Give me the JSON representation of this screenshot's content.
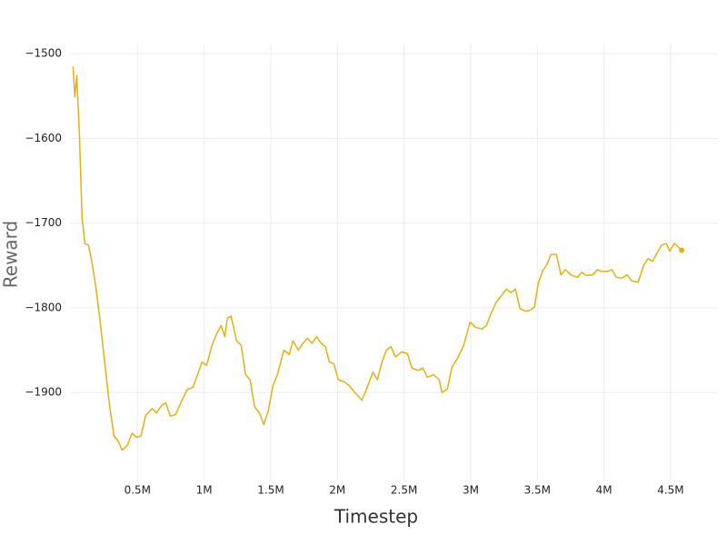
{
  "chart_data": {
    "type": "line",
    "x_label": "Timestep",
    "y_label": "Reward",
    "xlim": [
      0,
      4855000
    ],
    "ylim": [
      -2005,
      -1488
    ],
    "xticks": [
      {
        "value": 500000,
        "label": "0.5M"
      },
      {
        "value": 1000000,
        "label": "1M"
      },
      {
        "value": 1500000,
        "label": "1.5M"
      },
      {
        "value": 2000000,
        "label": "2M"
      },
      {
        "value": 2500000,
        "label": "2.5M"
      },
      {
        "value": 3000000,
        "label": "3M"
      },
      {
        "value": 3500000,
        "label": "3.5M"
      },
      {
        "value": 4000000,
        "label": "4M"
      },
      {
        "value": 4500000,
        "label": "4.5M"
      }
    ],
    "yticks": [
      {
        "value": -1500,
        "label": "−1500"
      },
      {
        "value": -1600,
        "label": "−1600"
      },
      {
        "value": -1700,
        "label": "−1700"
      },
      {
        "value": -1800,
        "label": "−1800"
      },
      {
        "value": -1900,
        "label": "−1900"
      }
    ],
    "grid": true,
    "end_marker": true,
    "series": [
      {
        "color": "#e6b00e",
        "x": [
          16000,
          30000,
          44000,
          64000,
          84000,
          105000,
          132000,
          160000,
          187000,
          220000,
          255000,
          289000,
          323000,
          357000,
          384000,
          425000,
          459000,
          493000,
          527000,
          561000,
          609000,
          643000,
          677000,
          712000,
          746000,
          786000,
          834000,
          875000,
          916000,
          957000,
          984000,
          1018000,
          1059000,
          1093000,
          1127000,
          1155000,
          1175000,
          1202000,
          1243000,
          1277000,
          1311000,
          1345000,
          1379000,
          1414000,
          1448000,
          1482000,
          1516000,
          1550000,
          1598000,
          1639000,
          1666000,
          1707000,
          1741000,
          1775000,
          1809000,
          1843000,
          1877000,
          1911000,
          1939000,
          1973000,
          2007000,
          2048000,
          2089000,
          2130000,
          2184000,
          2218000,
          2266000,
          2300000,
          2334000,
          2368000,
          2402000,
          2436000,
          2484000,
          2525000,
          2559000,
          2607000,
          2641000,
          2675000,
          2722000,
          2764000,
          2784000,
          2825000,
          2859000,
          2900000,
          2948000,
          2995000,
          3036000,
          3084000,
          3118000,
          3152000,
          3193000,
          3234000,
          3268000,
          3302000,
          3336000,
          3370000,
          3411000,
          3445000,
          3479000,
          3507000,
          3541000,
          3575000,
          3602000,
          3643000,
          3677000,
          3711000,
          3752000,
          3800000,
          3834000,
          3868000,
          3916000,
          3950000,
          3984000,
          4025000,
          4059000,
          4093000,
          4134000,
          4174000,
          4208000,
          4256000,
          4297000,
          4331000,
          4365000,
          4399000,
          4433000,
          4467000,
          4494000,
          4528000,
          4556000,
          4583000
        ],
        "values": [
          -1515,
          -1551,
          -1526,
          -1595,
          -1694,
          -1724,
          -1726,
          -1748,
          -1775,
          -1817,
          -1866,
          -1914,
          -1951,
          -1958,
          -1968,
          -1962,
          -1948,
          -1953,
          -1951,
          -1927,
          -1919,
          -1924,
          -1916,
          -1912,
          -1928,
          -1926,
          -1909,
          -1896,
          -1894,
          -1876,
          -1864,
          -1868,
          -1844,
          -1831,
          -1821,
          -1834,
          -1812,
          -1810,
          -1839,
          -1844,
          -1879,
          -1885,
          -1917,
          -1924,
          -1938,
          -1921,
          -1892,
          -1879,
          -1850,
          -1855,
          -1839,
          -1850,
          -1842,
          -1836,
          -1842,
          -1834,
          -1842,
          -1846,
          -1864,
          -1866,
          -1885,
          -1887,
          -1892,
          -1900,
          -1909,
          -1896,
          -1876,
          -1885,
          -1864,
          -1850,
          -1846,
          -1858,
          -1852,
          -1854,
          -1871,
          -1874,
          -1871,
          -1882,
          -1879,
          -1885,
          -1900,
          -1896,
          -1870,
          -1860,
          -1844,
          -1817,
          -1823,
          -1825,
          -1821,
          -1807,
          -1793,
          -1785,
          -1778,
          -1782,
          -1778,
          -1801,
          -1804,
          -1803,
          -1799,
          -1771,
          -1756,
          -1748,
          -1737,
          -1737,
          -1761,
          -1755,
          -1761,
          -1764,
          -1758,
          -1762,
          -1761,
          -1755,
          -1757,
          -1757,
          -1755,
          -1764,
          -1765,
          -1761,
          -1768,
          -1770,
          -1750,
          -1742,
          -1745,
          -1735,
          -1726,
          -1724,
          -1733,
          -1724,
          -1728,
          -1732
        ]
      }
    ]
  }
}
